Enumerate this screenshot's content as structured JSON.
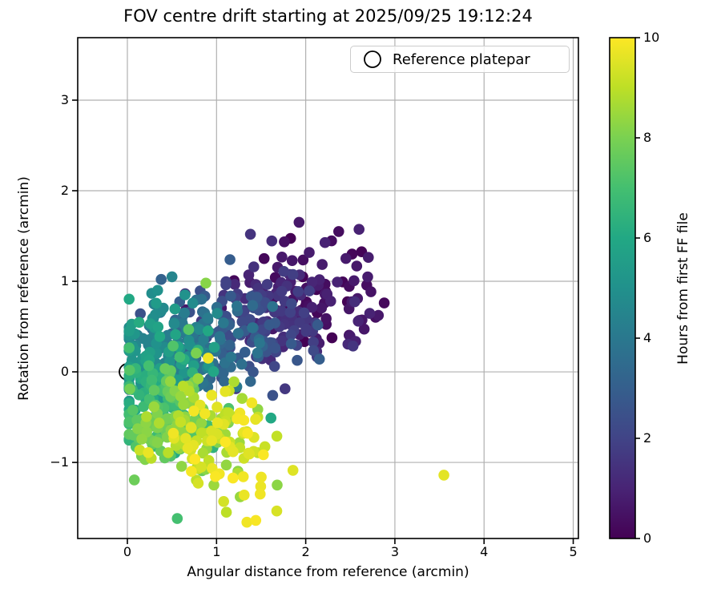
{
  "chart_data": {
    "type": "scatter",
    "title": "FOV centre drift starting at 2025/09/25 19:12:24",
    "xlabel": "Angular distance from reference (arcmin)",
    "ylabel": "Rotation from reference (arcmin)",
    "xlim": [
      -0.557,
      5.058
    ],
    "ylim": [
      -1.84,
      3.69
    ],
    "xticks": [
      0,
      1,
      2,
      3,
      4,
      5
    ],
    "yticks": [
      -1,
      0,
      1,
      2,
      3
    ],
    "grid": true,
    "legend": {
      "label": "Reference platepar",
      "position": "upper right",
      "marker": "open-circle"
    },
    "reference_point": {
      "x": 0,
      "y": 0
    },
    "colorbar": {
      "label": "Hours from first FF file",
      "vmin": 0,
      "vmax": 10,
      "ticks": [
        0,
        2,
        4,
        6,
        8,
        10
      ],
      "colormap": "viridis"
    },
    "colormap_stops": [
      "#440154",
      "#482475",
      "#414487",
      "#355f8d",
      "#2a788e",
      "#21918c",
      "#22a884",
      "#44bf70",
      "#7ad151",
      "#bddf26",
      "#fde725"
    ],
    "series_description": "FOV centre position for each FF file, coloured by hours from first FF file; drift runs from (≈2.1, +0.9) at hour 0 toward the reference then down to (≈1.1, −0.8) by hour 10",
    "clusters": [
      {
        "hours": [
          0,
          1
        ],
        "cx": 2.05,
        "cy": 0.85,
        "sx": 0.42,
        "sy": 0.3,
        "n": 90
      },
      {
        "hours": [
          1,
          2
        ],
        "cx": 1.65,
        "cy": 0.62,
        "sx": 0.38,
        "sy": 0.28,
        "n": 85
      },
      {
        "hours": [
          2,
          3
        ],
        "cx": 1.22,
        "cy": 0.45,
        "sx": 0.35,
        "sy": 0.26,
        "n": 80
      },
      {
        "hours": [
          3,
          4
        ],
        "cx": 0.82,
        "cy": 0.33,
        "sx": 0.32,
        "sy": 0.25,
        "n": 78
      },
      {
        "hours": [
          4,
          5
        ],
        "cx": 0.45,
        "cy": 0.24,
        "sx": 0.28,
        "sy": 0.28,
        "n": 76
      },
      {
        "hours": [
          5,
          6
        ],
        "cx": 0.28,
        "cy": 0.02,
        "sx": 0.24,
        "sy": 0.3,
        "n": 76
      },
      {
        "hours": [
          6,
          7
        ],
        "cx": 0.3,
        "cy": -0.3,
        "sx": 0.25,
        "sy": 0.3,
        "n": 76
      },
      {
        "hours": [
          7,
          8
        ],
        "cx": 0.48,
        "cy": -0.5,
        "sx": 0.28,
        "sy": 0.28,
        "n": 72
      },
      {
        "hours": [
          8,
          9
        ],
        "cx": 0.72,
        "cy": -0.62,
        "sx": 0.3,
        "sy": 0.28,
        "n": 72
      },
      {
        "hours": [
          9,
          10
        ],
        "cx": 1.05,
        "cy": -0.78,
        "sx": 0.33,
        "sy": 0.28,
        "n": 72
      }
    ],
    "outliers": [
      {
        "x": 3.55,
        "y": -1.14,
        "h": 9.6
      },
      {
        "x": 0.56,
        "y": -1.62,
        "h": 7.0
      },
      {
        "x": 1.11,
        "y": -1.55,
        "h": 9.0
      },
      {
        "x": 1.34,
        "y": -1.66,
        "h": 9.8
      },
      {
        "x": 1.44,
        "y": -1.64,
        "h": 9.9
      },
      {
        "x": 1.31,
        "y": -1.36,
        "h": 9.7
      },
      {
        "x": 1.49,
        "y": -1.35,
        "h": 9.8
      },
      {
        "x": 0.97,
        "y": -1.25,
        "h": 8.5
      },
      {
        "x": 2.88,
        "y": 0.76,
        "h": 0.2
      },
      {
        "x": 2.52,
        "y": 1.3,
        "h": 0.15
      },
      {
        "x": 2.37,
        "y": 1.55,
        "h": 0.3
      },
      {
        "x": 1.38,
        "y": 1.52,
        "h": 1.5
      },
      {
        "x": 0.88,
        "y": 0.98,
        "h": 8.2
      },
      {
        "x": 0.5,
        "y": 1.05,
        "h": 4.5
      },
      {
        "x": 0.34,
        "y": 0.9,
        "h": 5.0
      },
      {
        "x": 1.63,
        "y": -0.26,
        "h": 2.5
      },
      {
        "x": 1.61,
        "y": -0.51,
        "h": 6.0
      }
    ]
  }
}
